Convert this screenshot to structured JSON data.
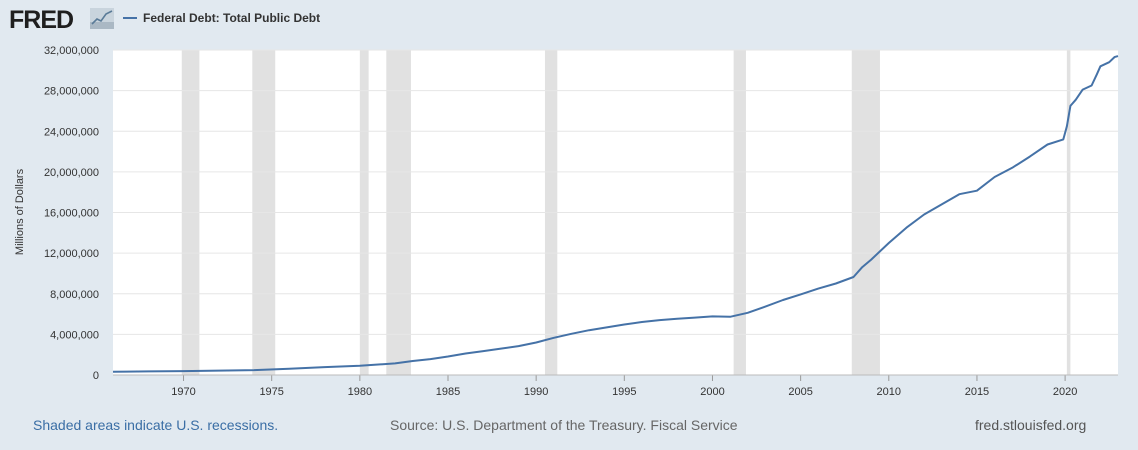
{
  "header": {
    "logo_text": "FRED",
    "logo_icon": "fred-chart-icon",
    "legend_label": "Federal Debt: Total Public Debt"
  },
  "footer": {
    "recessions_note": "Shaded areas indicate U.S. recessions.",
    "source": "Source: U.S. Department of the Treasury. Fiscal Service",
    "site": "fred.stlouisfed.org"
  },
  "colors": {
    "background": "#e1e9f0",
    "plot_background": "#ffffff",
    "series_line": "#4572a7",
    "recession_shade": "#e1e1e1",
    "logo_text": "#1f1f1f",
    "footer_link": "#3a6ea5"
  },
  "chart_data": {
    "type": "line",
    "title": "",
    "xlabel": "",
    "ylabel": "Millions of Dollars",
    "xlim": [
      1966.0,
      2023.0
    ],
    "ylim": [
      0,
      32000000
    ],
    "grid": true,
    "legend": "top-left",
    "x_ticks": [
      1970,
      1975,
      1980,
      1985,
      1990,
      1995,
      2000,
      2005,
      2010,
      2015,
      2020
    ],
    "y_ticks": [
      0,
      4000000,
      8000000,
      12000000,
      16000000,
      20000000,
      24000000,
      28000000,
      32000000
    ],
    "y_tick_labels": [
      "0",
      "4,000,000",
      "8,000,000",
      "12,000,000",
      "16,000,000",
      "20,000,000",
      "24,000,000",
      "28,000,000",
      "32,000,000"
    ],
    "recessions": [
      [
        1969.9,
        1970.9
      ],
      [
        1973.9,
        1975.2
      ],
      [
        1980.0,
        1980.5
      ],
      [
        1981.5,
        1982.9
      ],
      [
        1990.5,
        1991.2
      ],
      [
        2001.2,
        2001.9
      ],
      [
        2007.9,
        2009.5
      ],
      [
        2020.1,
        2020.3
      ]
    ],
    "series": [
      {
        "name": "Federal Debt: Total Public Debt",
        "x": [
          1966.0,
          1968.0,
          1970.0,
          1972.0,
          1974.0,
          1976.0,
          1978.0,
          1980.0,
          1982.0,
          1983.0,
          1984.0,
          1985.0,
          1986.0,
          1987.0,
          1988.0,
          1989.0,
          1990.0,
          1991.0,
          1992.0,
          1993.0,
          1994.0,
          1995.0,
          1996.0,
          1997.0,
          1998.0,
          1999.0,
          2000.0,
          2001.0,
          2002.0,
          2003.0,
          2004.0,
          2005.0,
          2006.0,
          2007.0,
          2008.0,
          2008.5,
          2009.0,
          2010.0,
          2011.0,
          2012.0,
          2013.0,
          2014.0,
          2015.0,
          2016.0,
          2017.0,
          2018.0,
          2019.0,
          2019.9,
          2020.1,
          2020.3,
          2020.6,
          2021.0,
          2021.5,
          2021.8,
          2022.0,
          2022.5,
          2022.8,
          2023.0
        ],
        "values": [
          320000,
          350000,
          380000,
          430000,
          480000,
          620000,
          780000,
          910000,
          1140000,
          1380000,
          1570000,
          1820000,
          2120000,
          2350000,
          2600000,
          2850000,
          3200000,
          3660000,
          4060000,
          4410000,
          4690000,
          4970000,
          5220000,
          5410000,
          5530000,
          5650000,
          5770000,
          5730000,
          6120000,
          6730000,
          7380000,
          7940000,
          8510000,
          9010000,
          9650000,
          10620000,
          11360000,
          13000000,
          14500000,
          15800000,
          16800000,
          17800000,
          18150000,
          19500000,
          20400000,
          21500000,
          22700000,
          23200000,
          24500000,
          26500000,
          27100000,
          28100000,
          28500000,
          29600000,
          30400000,
          30800000,
          31300000,
          31400000
        ]
      }
    ]
  }
}
